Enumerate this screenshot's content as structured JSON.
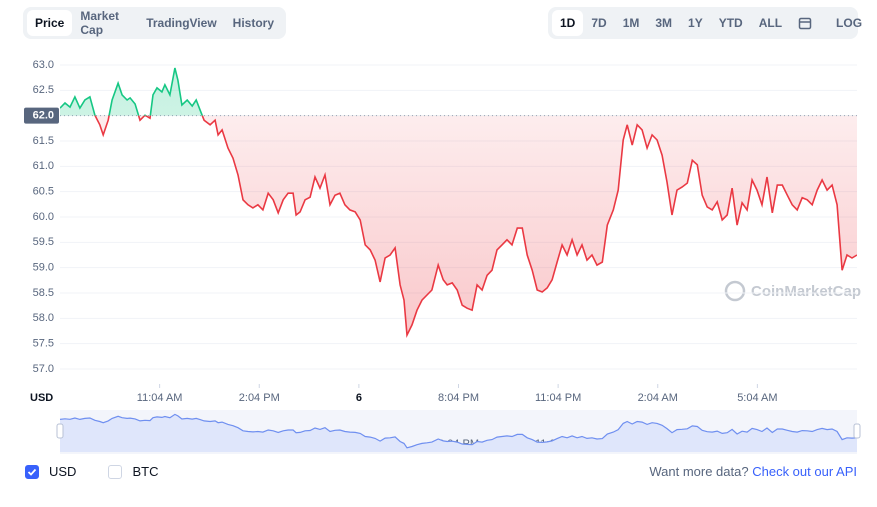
{
  "tabs": [
    "Price",
    "Market Cap",
    "TradingView",
    "History"
  ],
  "ranges": [
    "1D",
    "7D",
    "1M",
    "3M",
    "1Y",
    "YTD",
    "ALL"
  ],
  "log_button": "LOG",
  "watermark": "CoinMarketCap",
  "currencies": [
    {
      "label": "USD",
      "checked": true
    },
    {
      "label": "BTC",
      "checked": false
    }
  ],
  "footer": {
    "text": "Want more data?",
    "link": "Check out our API"
  },
  "chart_data": {
    "type": "line",
    "y_unit": "USD",
    "baseline": 62,
    "xlim": [
      0,
      24
    ],
    "xticks": [
      {
        "value": 3,
        "label": "11:04 AM"
      },
      {
        "value": 6,
        "label": "2:04 PM"
      },
      {
        "value": 9,
        "label": "6"
      },
      {
        "value": 12,
        "label": "8:04 PM"
      },
      {
        "value": 15,
        "label": "11:04 PM"
      },
      {
        "value": 18,
        "label": "2:04 AM"
      },
      {
        "value": 21,
        "label": "5:04 AM"
      }
    ],
    "ylim": [
      57,
      63
    ],
    "yticks": [
      {
        "value": 57,
        "label": "57.0"
      },
      {
        "value": 57.5,
        "label": "57.5"
      },
      {
        "value": 58,
        "label": "58.0"
      },
      {
        "value": 58.5,
        "label": "58.5"
      },
      {
        "value": 59,
        "label": "59.0"
      },
      {
        "value": 59.5,
        "label": "59.5"
      },
      {
        "value": 60,
        "label": "60.0"
      },
      {
        "value": 60.5,
        "label": "60.5"
      },
      {
        "value": 61,
        "label": "61.0"
      },
      {
        "value": 61.5,
        "label": "61.5"
      },
      {
        "value": 62,
        "label": "62.0"
      },
      {
        "value": 62.5,
        "label": "62.5"
      },
      {
        "value": 63,
        "label": "63.0"
      }
    ],
    "up_color": "#16c784",
    "down_color": "#ea3943",
    "x": [
      0,
      0.15,
      0.3,
      0.45,
      0.6,
      0.75,
      0.9,
      1.05,
      1.2,
      1.3,
      1.45,
      1.57,
      1.75,
      1.87,
      2.02,
      2.11,
      2.26,
      2.41,
      2.56,
      2.71,
      2.8,
      2.92,
      3.07,
      3.16,
      3.31,
      3.46,
      3.55,
      3.67,
      3.83,
      3.98,
      4.1,
      4.22,
      4.34,
      4.52,
      4.67,
      4.76,
      4.88,
      5.06,
      5.21,
      5.36,
      5.51,
      5.66,
      5.81,
      5.96,
      6.11,
      6.27,
      6.42,
      6.57,
      6.72,
      6.87,
      7.02,
      7.11,
      7.23,
      7.38,
      7.53,
      7.68,
      7.83,
      7.98,
      8.13,
      8.28,
      8.43,
      8.58,
      8.73,
      8.89,
      9.04,
      9.19,
      9.34,
      9.49,
      9.64,
      9.79,
      9.94,
      10.09,
      10.24,
      10.36,
      10.45,
      10.6,
      10.75,
      10.9,
      11.05,
      11.2,
      11.39,
      11.54,
      11.66,
      11.81,
      11.96,
      12.11,
      12.26,
      12.41,
      12.56,
      12.71,
      12.86,
      13.01,
      13.16,
      13.31,
      13.46,
      13.61,
      13.77,
      13.92,
      14.07,
      14.22,
      14.37,
      14.52,
      14.67,
      14.82,
      14.97,
      15.12,
      15.27,
      15.42,
      15.57,
      15.72,
      15.87,
      16.02,
      16.17,
      16.33,
      16.48,
      16.66,
      16.81,
      16.96,
      17.08,
      17.23,
      17.38,
      17.53,
      17.68,
      17.83,
      17.98,
      18.13,
      18.28,
      18.43,
      18.58,
      18.73,
      18.89,
      19.04,
      19.19,
      19.34,
      19.49,
      19.64,
      19.79,
      19.94,
      20.09,
      20.24,
      20.39,
      20.54,
      20.69,
      20.84,
      20.99,
      21.14,
      21.29,
      21.45,
      21.6,
      21.75,
      21.9,
      22.05,
      22.2,
      22.35,
      22.5,
      22.65,
      22.8,
      22.95,
      23.1,
      23.25,
      23.4,
      23.55,
      23.7,
      23.85,
      24
    ],
    "values": [
      62.15,
      62.25,
      62.17,
      62.37,
      62.15,
      62.31,
      62.37,
      62.01,
      61.82,
      61.62,
      61.91,
      62.31,
      62.64,
      62.41,
      62.31,
      62.35,
      62.23,
      61.91,
      62.01,
      61.95,
      62.41,
      62.55,
      62.47,
      62.61,
      62.41,
      62.94,
      62.7,
      62.21,
      62.31,
      62.19,
      62.31,
      62.11,
      61.91,
      61.82,
      61.91,
      61.62,
      61.72,
      61.36,
      61.16,
      60.83,
      60.34,
      60.24,
      60.18,
      60.24,
      60.14,
      60.47,
      60.34,
      60.08,
      60.34,
      60.47,
      60.47,
      60.04,
      60.1,
      60.34,
      60.39,
      60.79,
      60.57,
      60.83,
      60.24,
      60.43,
      60.47,
      60.24,
      60.14,
      60.1,
      59.94,
      59.45,
      59.35,
      59.15,
      58.72,
      59.19,
      59.25,
      59.39,
      58.66,
      58.36,
      57.67,
      57.87,
      58.16,
      58.36,
      58.46,
      58.56,
      59.05,
      58.76,
      58.66,
      58.7,
      58.56,
      58.26,
      58.2,
      58.16,
      58.66,
      58.56,
      58.85,
      58.95,
      59.35,
      59.45,
      59.55,
      59.45,
      59.78,
      59.78,
      59.25,
      58.95,
      58.56,
      58.52,
      58.6,
      58.76,
      59.11,
      59.45,
      59.25,
      59.55,
      59.25,
      59.45,
      59.15,
      59.25,
      59.05,
      59.11,
      59.84,
      60.14,
      60.53,
      61.52,
      61.82,
      61.42,
      61.82,
      61.72,
      61.36,
      61.62,
      61.52,
      61.22,
      60.69,
      60.04,
      60.53,
      60.59,
      60.67,
      61.12,
      61.03,
      60.43,
      60.2,
      60.14,
      60.3,
      59.94,
      60.04,
      60.57,
      59.84,
      60.28,
      60.14,
      60.73,
      60.53,
      60.24,
      60.79,
      60.08,
      60.63,
      60.63,
      60.43,
      60.24,
      60.14,
      60.38,
      60.34,
      60.24,
      60.53,
      60.73,
      60.53,
      60.63,
      60.24,
      58.95,
      59.25,
      59.19,
      59.25
    ]
  }
}
